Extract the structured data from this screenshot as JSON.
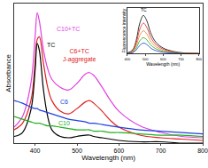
{
  "chart_data": [
    {
      "type": "line",
      "x_label": "Wavelength (nm)",
      "y_label": "Absorbance",
      "x": [
        350,
        370,
        390,
        400,
        405,
        410,
        420,
        430,
        440,
        460,
        480,
        500,
        520,
        530,
        540,
        560,
        580,
        600,
        650,
        700,
        750,
        800
      ],
      "series": [
        {
          "name": "C10+TC",
          "color": "#e040e0",
          "values": [
            0.12,
            0.2,
            0.45,
            0.8,
            0.98,
            0.92,
            0.7,
            0.56,
            0.48,
            0.42,
            0.4,
            0.45,
            0.52,
            0.53,
            0.51,
            0.42,
            0.32,
            0.24,
            0.13,
            0.08,
            0.05,
            0.04
          ]
        },
        {
          "name": "C6+TC",
          "color": "#e02020",
          "values": [
            0.1,
            0.15,
            0.32,
            0.6,
            0.78,
            0.8,
            0.6,
            0.42,
            0.32,
            0.24,
            0.22,
            0.26,
            0.31,
            0.32,
            0.3,
            0.24,
            0.17,
            0.12,
            0.06,
            0.04,
            0.03,
            0.02
          ]
        },
        {
          "name": "TC",
          "color": "#000000",
          "values": [
            0.05,
            0.08,
            0.25,
            0.55,
            0.75,
            0.7,
            0.4,
            0.2,
            0.1,
            0.05,
            0.04,
            0.05,
            0.06,
            0.06,
            0.05,
            0.04,
            0.03,
            0.02,
            0.01,
            0.01,
            0.0,
            0.0
          ]
        },
        {
          "name": "C6",
          "color": "#2040e0",
          "values": [
            0.32,
            0.3,
            0.27,
            0.26,
            0.26,
            0.25,
            0.24,
            0.23,
            0.22,
            0.2,
            0.18,
            0.17,
            0.16,
            0.15,
            0.15,
            0.14,
            0.13,
            0.12,
            0.1,
            0.09,
            0.08,
            0.07
          ]
        },
        {
          "name": "C10",
          "color": "#20b020",
          "values": [
            0.2,
            0.18,
            0.16,
            0.15,
            0.15,
            0.15,
            0.14,
            0.13,
            0.13,
            0.12,
            0.11,
            0.1,
            0.1,
            0.1,
            0.09,
            0.09,
            0.08,
            0.08,
            0.07,
            0.06,
            0.06,
            0.05
          ]
        }
      ],
      "xlim": [
        350,
        800
      ],
      "xticks": [
        400,
        500,
        600,
        700,
        800
      ],
      "ylim": [
        0,
        1.05
      ],
      "tick_labels": "x",
      "annotations": [
        {
          "lines": [
            "C10+TC"
          ],
          "color": "#e040e0"
        },
        {
          "lines": [
            "TC"
          ],
          "color": "#000000"
        },
        {
          "lines": [
            "C6"
          ],
          "color": "#2040e0"
        },
        {
          "lines": [
            "C10"
          ],
          "color": "#20b020"
        },
        {
          "lines": [
            "C6+TC",
            "J-aggregate"
          ],
          "color": "#e02020"
        }
      ]
    },
    {
      "type": "line",
      "x_label": "Wavelength (nm)",
      "y_label": "Fluorescence intensity",
      "x": [
        400,
        430,
        450,
        470,
        490,
        510,
        530,
        560,
        600,
        650,
        700,
        800
      ],
      "series": [
        {
          "name": "TC",
          "color": "#000000",
          "values": [
            0.02,
            0.1,
            0.35,
            0.8,
            1.0,
            0.85,
            0.55,
            0.3,
            0.15,
            0.07,
            0.03,
            0.01
          ]
        },
        {
          "color": "#e02020",
          "values": [
            0.02,
            0.08,
            0.28,
            0.64,
            0.8,
            0.68,
            0.44,
            0.24,
            0.12,
            0.05,
            0.02,
            0.01
          ]
        },
        {
          "color": "#f08020",
          "values": [
            0.01,
            0.06,
            0.21,
            0.48,
            0.6,
            0.51,
            0.33,
            0.18,
            0.09,
            0.04,
            0.02,
            0.01
          ]
        },
        {
          "color": "#20b020",
          "values": [
            0.01,
            0.04,
            0.15,
            0.34,
            0.42,
            0.36,
            0.23,
            0.13,
            0.06,
            0.03,
            0.01,
            0.0
          ]
        },
        {
          "color": "#2040e0",
          "values": [
            0.01,
            0.03,
            0.1,
            0.22,
            0.28,
            0.24,
            0.15,
            0.08,
            0.04,
            0.02,
            0.01,
            0.0
          ]
        }
      ],
      "xlim": [
        400,
        800
      ],
      "xticks": [
        400,
        500,
        600,
        700,
        800
      ],
      "ylim": [
        0,
        1.2
      ],
      "tick_labels": "x",
      "annotations": [
        {
          "lines": [
            "TC"
          ],
          "color": "#000000"
        }
      ]
    }
  ]
}
